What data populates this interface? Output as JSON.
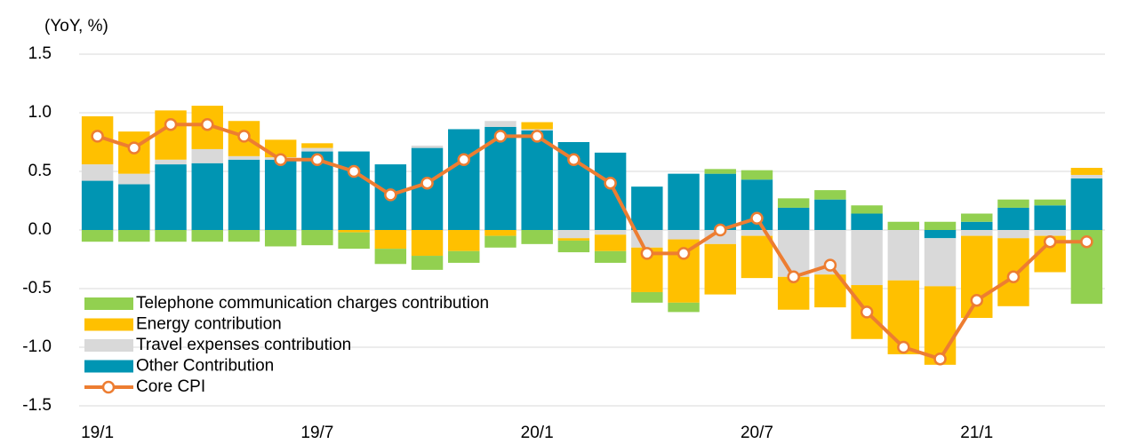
{
  "chart_data": {
    "type": "bar",
    "stacked": true,
    "y_label": "(YoY, %)",
    "categories": [
      "19/1",
      null,
      null,
      null,
      null,
      null,
      "19/7",
      null,
      null,
      null,
      null,
      null,
      "20/1",
      null,
      null,
      null,
      null,
      null,
      "20/7",
      null,
      null,
      null,
      null,
      null,
      "21/1",
      null,
      null,
      null
    ],
    "ylim": [
      -1.5,
      1.5
    ],
    "yticks": [
      -1.5,
      {
        "value": -1.0,
        "label": "-1.0"
      },
      -0.5,
      {
        "value": 0.0,
        "label": "0.0"
      },
      0.5,
      {
        "value": 1.0,
        "label": "1.0"
      },
      1.5
    ],
    "grid": true,
    "legend": "lower left",
    "series": [
      {
        "name": "Telephone communication charges contribution",
        "color": "#92d050",
        "values": [
          -0.1,
          -0.1,
          -0.1,
          -0.1,
          -0.1,
          -0.14,
          -0.13,
          -0.14,
          -0.13,
          -0.12,
          -0.1,
          -0.1,
          -0.12,
          -0.1,
          -0.1,
          -0.09,
          -0.08,
          0.04,
          0.08,
          0.08,
          0.08,
          0.07,
          0.07,
          0.07,
          0.07,
          0.07,
          0.05,
          -0.63
        ]
      },
      {
        "name": "Energy contribution",
        "color": "#ffc000",
        "values": [
          0.41,
          0.36,
          0.42,
          0.37,
          0.3,
          0.15,
          0.04,
          -0.02,
          -0.16,
          -0.22,
          -0.18,
          -0.05,
          0.06,
          -0.02,
          -0.14,
          -0.38,
          -0.54,
          -0.43,
          -0.36,
          -0.28,
          -0.28,
          -0.46,
          -0.63,
          -0.67,
          -0.7,
          -0.58,
          -0.31,
          0.06
        ]
      },
      {
        "name": "Travel expenses contribution",
        "color": "#d9d9d9",
        "values": [
          0.14,
          0.09,
          0.04,
          0.12,
          0.03,
          0.02,
          0.03,
          0,
          0,
          0.02,
          0,
          0.05,
          0.01,
          -0.07,
          -0.04,
          -0.15,
          -0.08,
          -0.12,
          -0.05,
          -0.4,
          -0.38,
          -0.47,
          -0.43,
          -0.41,
          -0.05,
          -0.07,
          -0.05,
          0.03
        ]
      },
      {
        "name": "Other Contribution",
        "color": "#0095b3",
        "values": [
          0.42,
          0.39,
          0.56,
          0.57,
          0.6,
          0.6,
          0.67,
          0.67,
          0.56,
          0.7,
          0.86,
          0.88,
          0.85,
          0.75,
          0.66,
          0.37,
          0.48,
          0.48,
          0.43,
          0.19,
          0.26,
          0.14,
          0,
          -0.07,
          0.07,
          0.19,
          0.21,
          0.44
        ]
      },
      {
        "name": "Core CPI",
        "color": "#ed7d31",
        "type": "line",
        "values": [
          0.8,
          0.7,
          0.9,
          0.9,
          0.8,
          0.6,
          0.6,
          0.5,
          0.3,
          0.4,
          0.6,
          0.8,
          0.8,
          0.6,
          0.4,
          -0.2,
          -0.2,
          0.0,
          0.1,
          -0.4,
          -0.3,
          -0.7,
          -1.0,
          -1.1,
          -0.6,
          -0.4,
          -0.1,
          -0.1
        ]
      }
    ]
  }
}
